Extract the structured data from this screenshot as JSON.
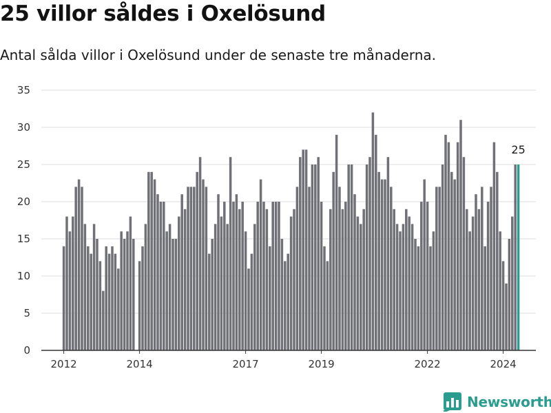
{
  "header": {
    "title": "25 villor såldes i Oxelösund",
    "subtitle": "Antal sålda villor i Oxelösund under de senaste tre månaderna."
  },
  "brand": {
    "name": "Newsworthy",
    "icon": "newsworthy-logo-icon",
    "color": "#2a9d8f"
  },
  "chart_data": {
    "type": "bar",
    "x_start": "2012-01",
    "x_frequency": "monthly",
    "values": [
      14,
      18,
      16,
      18,
      22,
      23,
      22,
      17,
      14,
      13,
      17,
      15,
      12,
      8,
      14,
      13,
      14,
      13,
      11,
      16,
      15,
      16,
      18,
      15,
      null,
      12,
      14,
      17,
      24,
      24,
      23,
      21,
      20,
      20,
      16,
      17,
      15,
      15,
      18,
      21,
      19,
      22,
      22,
      22,
      24,
      26,
      23,
      22,
      13,
      15,
      17,
      21,
      18,
      20,
      17,
      26,
      20,
      21,
      19,
      20,
      16,
      11,
      13,
      17,
      20,
      23,
      20,
      19,
      14,
      20,
      20,
      20,
      15,
      12,
      13,
      18,
      19,
      22,
      26,
      27,
      27,
      22,
      25,
      25,
      26,
      20,
      14,
      12,
      19,
      24,
      29,
      22,
      19,
      20,
      25,
      25,
      21,
      18,
      17,
      19,
      25,
      26,
      32,
      29,
      24,
      23,
      23,
      26,
      22,
      19,
      17,
      16,
      17,
      19,
      18,
      17,
      15,
      14,
      20,
      23,
      20,
      14,
      16,
      22,
      22,
      25,
      29,
      28,
      24,
      23,
      28,
      31,
      26,
      19,
      16,
      18,
      21,
      19,
      22,
      14,
      20,
      22,
      28,
      24,
      16,
      12,
      9,
      15,
      18,
      25,
      25
    ],
    "highlight": {
      "value": 25,
      "label": "25",
      "color": "#2a9d8f"
    },
    "bar_color": "#707077",
    "ylim": [
      0,
      35
    ],
    "yticks": [
      0,
      5,
      10,
      15,
      20,
      25,
      30,
      35
    ],
    "xticks": [
      {
        "label": "2012",
        "index": 0
      },
      {
        "label": "2014",
        "index": 25
      },
      {
        "label": "2017",
        "index": 60
      },
      {
        "label": "2019",
        "index": 85
      },
      {
        "label": "2022",
        "index": 120
      },
      {
        "label": "2024",
        "index": 145
      }
    ],
    "grid": true,
    "legend": "none",
    "title": "",
    "xlabel": "",
    "ylabel": ""
  }
}
